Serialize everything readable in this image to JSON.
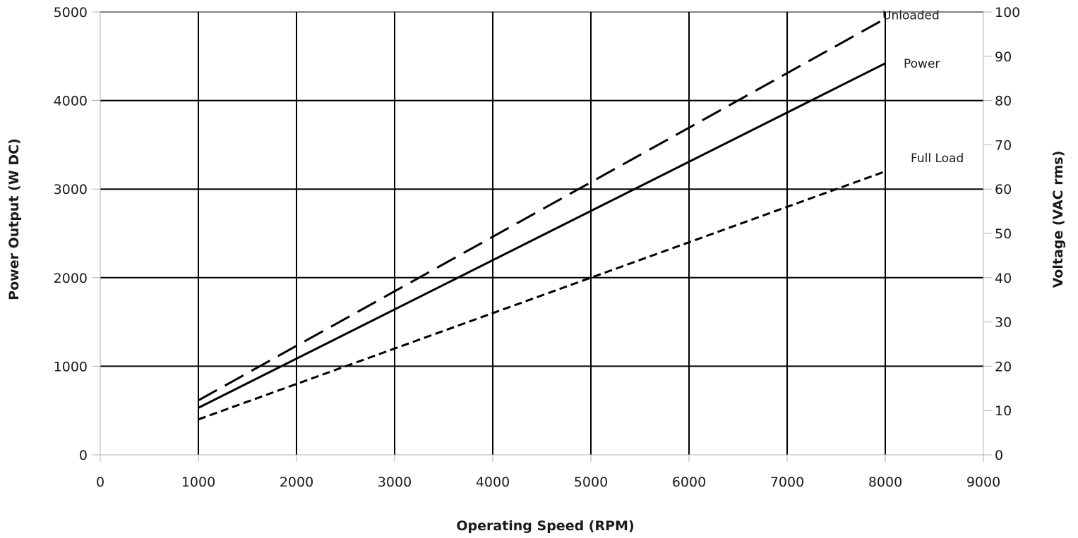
{
  "chart_data": {
    "type": "line",
    "title": "",
    "xlabel": "Operating Speed (RPM)",
    "ylabel": "Power Output (W DC)",
    "y2label": "Voltage (VAC rms)",
    "xlim": [
      0,
      9000
    ],
    "ylim": [
      0,
      5000
    ],
    "y2lim": [
      0,
      100
    ],
    "x_ticks": [
      0,
      1000,
      2000,
      3000,
      4000,
      5000,
      6000,
      7000,
      8000,
      9000
    ],
    "y_ticks": [
      0,
      1000,
      2000,
      3000,
      4000,
      5000
    ],
    "y2_ticks": [
      0,
      10,
      20,
      30,
      40,
      50,
      60,
      70,
      80,
      90,
      100
    ],
    "grid": true,
    "legend": "none",
    "series": [
      {
        "name": "Unloaded",
        "axis": "right",
        "style": "long-dash",
        "x": [
          1000,
          8000
        ],
        "y": [
          12.3,
          98.5
        ]
      },
      {
        "name": "Power",
        "axis": "left",
        "style": "solid",
        "x": [
          1000,
          8000
        ],
        "y": [
          530,
          4420
        ]
      },
      {
        "name": "Full Load",
        "axis": "right",
        "style": "short-dash",
        "x": [
          1000,
          8000
        ],
        "y": [
          8,
          64
        ]
      }
    ]
  },
  "colors": {
    "line": "#000000",
    "grid": "#000000",
    "text": "#1a1a1a"
  }
}
